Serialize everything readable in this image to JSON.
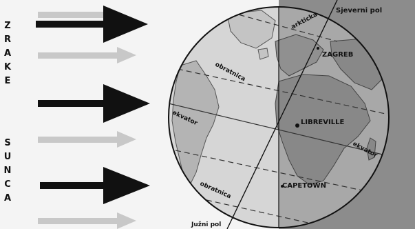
{
  "side_words": {
    "top": "ZRAKE",
    "bottom": "SUNCA"
  },
  "labels": {
    "north_pole": "Sjeverni pol",
    "arctic_circle": "arkticka",
    "north_tropic": "obratnica",
    "zagreb": "ZAGREB",
    "equator_left": "ekvator",
    "libreville": "LIBREVILLE",
    "equator_right": "ekvator",
    "cape_town": "CAPETOWN",
    "south_tropic": "obratnica",
    "south_pole": "Južni pol"
  },
  "colors": {
    "background": "#f4f4f4",
    "night_side": "#8c8c8c",
    "globe_day": "#d6d6d6",
    "globe_night": "#a8a8a8",
    "land_day": "#b4b4b4",
    "land_night": "#888888",
    "arrow_dark": "#111111",
    "arrow_light": "#c8c8c8"
  }
}
